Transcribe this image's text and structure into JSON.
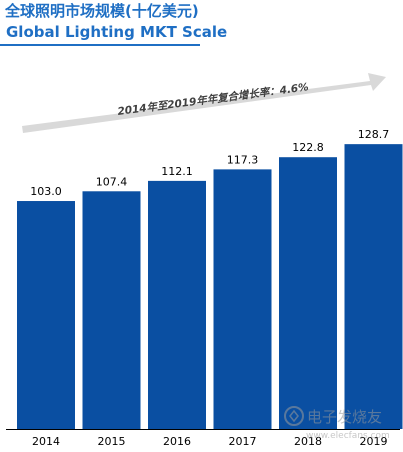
{
  "title_cn": "全球照明市场规模(十亿美元)",
  "title_en": "Global Lighting MKT Scale",
  "colors": {
    "title": "#1f6fc4",
    "bar": "#0a4fa2",
    "axis": "#000000",
    "arrow": "#d9d9d9",
    "cagr_text": "#404040",
    "label": "#000000",
    "watermark": "#9a9a9a"
  },
  "cagr_annotation": "2014年至2019年年复合增长率：4.6%",
  "watermark_text": "电子发烧友",
  "watermark_url": "www.elecfans.com",
  "chart_data": {
    "type": "bar",
    "title": "全球照明市场规模(十亿美元)",
    "subtitle": "Global Lighting MKT Scale",
    "categories": [
      "2014",
      "2015",
      "2016",
      "2017",
      "2018",
      "2019"
    ],
    "values": [
      103.0,
      107.4,
      112.1,
      117.3,
      122.8,
      128.7
    ],
    "value_labels": [
      "103.0",
      "107.4",
      "112.1",
      "117.3",
      "122.8",
      "128.7"
    ],
    "xlabel": "",
    "ylabel": "",
    "ylim": [
      0,
      150
    ],
    "grid": false,
    "legend": "none",
    "annotation": "2014年至2019年年复合增长率：4.6%"
  }
}
